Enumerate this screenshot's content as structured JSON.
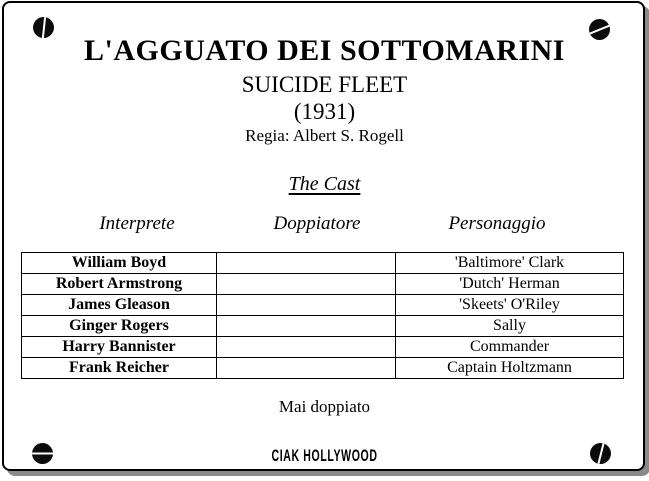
{
  "colors": {
    "background": "#ffffff",
    "frame_border": "#000000",
    "frame_shadow": "#8a8a8a",
    "text": "#000000",
    "screw_fill": "#0b0b0b"
  },
  "header": {
    "italian_title": "L'AGGUATO DEI SOTTOMARINI",
    "original_title": "SUICIDE FLEET",
    "year": "(1931)",
    "director": "Regia: Albert S. Rogell"
  },
  "cast": {
    "section_heading": "The Cast",
    "column_headers": [
      "Interprete",
      "Doppiatore",
      "Personaggio"
    ],
    "rows": [
      {
        "interprete": "William Boyd",
        "doppiatore": "",
        "personaggio": "'Baltimore' Clark"
      },
      {
        "interprete": "Robert Armstrong",
        "doppiatore": "",
        "personaggio": "'Dutch' Herman"
      },
      {
        "interprete": "James Gleason",
        "doppiatore": "",
        "personaggio": "'Skeets' O'Riley"
      },
      {
        "interprete": "Ginger Rogers",
        "doppiatore": "",
        "personaggio": "Sally"
      },
      {
        "interprete": "Harry Bannister",
        "doppiatore": "",
        "personaggio": "Commander"
      },
      {
        "interprete": "Frank Reicher",
        "doppiatore": "",
        "personaggio": "Captain Holtzmann"
      }
    ]
  },
  "footer": {
    "note": "Mai doppiato",
    "logo": "CIAK HOLLYWOOD"
  },
  "icons": {
    "screw_top_left": "screw-icon (vertical slot)",
    "screw_top_right": "screw-icon (diagonal slot)",
    "screw_bottom_left": "screw-icon (horizontal slot)",
    "screw_bottom_right": "screw-icon (near-vertical slot)"
  }
}
